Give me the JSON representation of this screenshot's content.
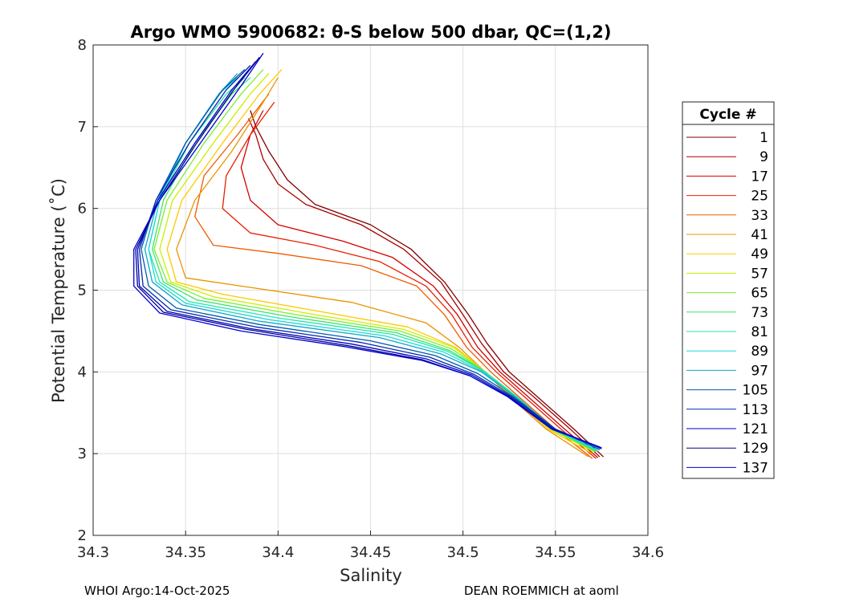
{
  "chart_data": {
    "type": "line",
    "title": "Argo WMO 5900682: θ-S below 500 dbar,  QC=(1,2)",
    "xlabel": "Salinity",
    "ylabel": "Potential Temperature (˚C)",
    "xlim": [
      34.3,
      34.6
    ],
    "ylim": [
      2,
      8
    ],
    "xticks": [
      34.3,
      34.35,
      34.4,
      34.45,
      34.5,
      34.55,
      34.6
    ],
    "xtick_labels": [
      "34.3",
      "34.35",
      "34.4",
      "34.45",
      "34.5",
      "34.55",
      "34.6"
    ],
    "yticks": [
      2,
      3,
      4,
      5,
      6,
      7,
      8
    ],
    "ytick_labels": [
      "2",
      "3",
      "4",
      "5",
      "6",
      "7",
      "8"
    ],
    "grid": true,
    "legend": {
      "title": "Cycle #",
      "placement": "right",
      "entries": [
        {
          "label": "1",
          "color": "#800000"
        },
        {
          "label": "9",
          "color": "#a80000"
        },
        {
          "label": "17",
          "color": "#d40000"
        },
        {
          "label": "25",
          "color": "#e82000"
        },
        {
          "label": "33",
          "color": "#f05a00"
        },
        {
          "label": "41",
          "color": "#e89400"
        },
        {
          "label": "49",
          "color": "#ffc800"
        },
        {
          "label": "57",
          "color": "#c8f000"
        },
        {
          "label": "65",
          "color": "#78f030"
        },
        {
          "label": "73",
          "color": "#40e070"
        },
        {
          "label": "81",
          "color": "#20e8a8"
        },
        {
          "label": "89",
          "color": "#20d8d8"
        },
        {
          "label": "97",
          "color": "#10a8c8"
        },
        {
          "label": "105",
          "color": "#005ab0"
        },
        {
          "label": "113",
          "color": "#0028b0"
        },
        {
          "label": "121",
          "color": "#0000c0"
        },
        {
          "label": "129",
          "color": "#00008a"
        },
        {
          "label": "137",
          "color": "#0000d8"
        }
      ]
    },
    "series": [
      {
        "name": "1",
        "color": "#800000",
        "points": [
          [
            34.576,
            2.96
          ],
          [
            34.56,
            3.3
          ],
          [
            34.54,
            3.7
          ],
          [
            34.525,
            4.0
          ],
          [
            34.513,
            4.35
          ],
          [
            34.503,
            4.7
          ],
          [
            34.49,
            5.1
          ],
          [
            34.472,
            5.5
          ],
          [
            34.45,
            5.8
          ],
          [
            34.42,
            6.05
          ],
          [
            34.405,
            6.35
          ],
          [
            34.395,
            6.7
          ],
          [
            34.388,
            7.0
          ],
          [
            34.385,
            7.2
          ]
        ]
      },
      {
        "name": "9",
        "color": "#a80000",
        "points": [
          [
            34.574,
            2.96
          ],
          [
            34.558,
            3.3
          ],
          [
            34.538,
            3.7
          ],
          [
            34.522,
            4.0
          ],
          [
            34.51,
            4.35
          ],
          [
            34.5,
            4.7
          ],
          [
            34.488,
            5.1
          ],
          [
            34.468,
            5.5
          ],
          [
            34.445,
            5.8
          ],
          [
            34.415,
            6.05
          ],
          [
            34.4,
            6.3
          ],
          [
            34.392,
            6.6
          ],
          [
            34.388,
            6.9
          ],
          [
            34.384,
            7.1
          ]
        ]
      },
      {
        "name": "17",
        "color": "#d40000",
        "points": [
          [
            34.573,
            2.95
          ],
          [
            34.555,
            3.3
          ],
          [
            34.535,
            3.7
          ],
          [
            34.52,
            4.0
          ],
          [
            34.508,
            4.3
          ],
          [
            34.497,
            4.7
          ],
          [
            34.484,
            5.05
          ],
          [
            34.462,
            5.4
          ],
          [
            34.435,
            5.6
          ],
          [
            34.4,
            5.8
          ],
          [
            34.385,
            6.1
          ],
          [
            34.38,
            6.5
          ],
          [
            34.385,
            6.9
          ],
          [
            34.392,
            7.2
          ]
        ]
      },
      {
        "name": "25",
        "color": "#e82000",
        "points": [
          [
            34.572,
            2.94
          ],
          [
            34.553,
            3.3
          ],
          [
            34.533,
            3.7
          ],
          [
            34.518,
            4.0
          ],
          [
            34.505,
            4.3
          ],
          [
            34.494,
            4.7
          ],
          [
            34.48,
            5.05
          ],
          [
            34.455,
            5.35
          ],
          [
            34.42,
            5.55
          ],
          [
            34.385,
            5.7
          ],
          [
            34.37,
            6.0
          ],
          [
            34.372,
            6.4
          ],
          [
            34.385,
            6.9
          ],
          [
            34.398,
            7.3
          ]
        ]
      },
      {
        "name": "33",
        "color": "#f05a00",
        "points": [
          [
            34.57,
            2.94
          ],
          [
            34.55,
            3.3
          ],
          [
            34.53,
            3.7
          ],
          [
            34.515,
            4.0
          ],
          [
            34.502,
            4.3
          ],
          [
            34.49,
            4.7
          ],
          [
            34.475,
            5.05
          ],
          [
            34.445,
            5.3
          ],
          [
            34.4,
            5.45
          ],
          [
            34.365,
            5.55
          ],
          [
            34.355,
            5.9
          ],
          [
            34.36,
            6.4
          ],
          [
            34.378,
            6.9
          ],
          [
            34.395,
            7.4
          ]
        ]
      },
      {
        "name": "41",
        "color": "#e89400",
        "points": [
          [
            34.568,
            2.96
          ],
          [
            34.545,
            3.3
          ],
          [
            34.525,
            3.7
          ],
          [
            34.512,
            4.0
          ],
          [
            34.498,
            4.3
          ],
          [
            34.48,
            4.6
          ],
          [
            34.44,
            4.85
          ],
          [
            34.38,
            5.05
          ],
          [
            34.35,
            5.15
          ],
          [
            34.345,
            5.5
          ],
          [
            34.355,
            6.1
          ],
          [
            34.375,
            6.7
          ],
          [
            34.392,
            7.3
          ],
          [
            34.4,
            7.6
          ]
        ]
      },
      {
        "name": "49",
        "color": "#ffc800",
        "points": [
          [
            34.57,
            3.0
          ],
          [
            34.546,
            3.3
          ],
          [
            34.526,
            3.7
          ],
          [
            34.512,
            4.0
          ],
          [
            34.496,
            4.3
          ],
          [
            34.47,
            4.55
          ],
          [
            34.42,
            4.75
          ],
          [
            34.37,
            4.95
          ],
          [
            34.345,
            5.1
          ],
          [
            34.34,
            5.5
          ],
          [
            34.348,
            6.1
          ],
          [
            34.37,
            6.8
          ],
          [
            34.39,
            7.4
          ],
          [
            34.402,
            7.7
          ]
        ]
      },
      {
        "name": "57",
        "color": "#c8f000",
        "points": [
          [
            34.571,
            3.02
          ],
          [
            34.547,
            3.3
          ],
          [
            34.527,
            3.7
          ],
          [
            34.512,
            4.0
          ],
          [
            34.495,
            4.3
          ],
          [
            34.468,
            4.52
          ],
          [
            34.415,
            4.72
          ],
          [
            34.365,
            4.92
          ],
          [
            34.342,
            5.1
          ],
          [
            34.336,
            5.5
          ],
          [
            34.343,
            6.1
          ],
          [
            34.365,
            6.8
          ],
          [
            34.385,
            7.4
          ],
          [
            34.395,
            7.65
          ]
        ]
      },
      {
        "name": "65",
        "color": "#78f030",
        "points": [
          [
            34.572,
            3.02
          ],
          [
            34.548,
            3.3
          ],
          [
            34.528,
            3.7
          ],
          [
            34.512,
            4.0
          ],
          [
            34.494,
            4.28
          ],
          [
            34.466,
            4.5
          ],
          [
            34.41,
            4.7
          ],
          [
            34.36,
            4.9
          ],
          [
            34.34,
            5.1
          ],
          [
            34.333,
            5.5
          ],
          [
            34.34,
            6.1
          ],
          [
            34.36,
            6.8
          ],
          [
            34.38,
            7.4
          ],
          [
            34.392,
            7.7
          ]
        ]
      },
      {
        "name": "73",
        "color": "#40e070",
        "points": [
          [
            34.572,
            3.03
          ],
          [
            34.548,
            3.3
          ],
          [
            34.528,
            3.7
          ],
          [
            34.512,
            4.0
          ],
          [
            34.493,
            4.26
          ],
          [
            34.464,
            4.48
          ],
          [
            34.405,
            4.68
          ],
          [
            34.356,
            4.88
          ],
          [
            34.338,
            5.1
          ],
          [
            34.332,
            5.5
          ],
          [
            34.338,
            6.1
          ],
          [
            34.355,
            6.8
          ],
          [
            34.375,
            7.4
          ],
          [
            34.385,
            7.6
          ]
        ]
      },
      {
        "name": "81",
        "color": "#20e8a8",
        "points": [
          [
            34.573,
            3.03
          ],
          [
            34.549,
            3.3
          ],
          [
            34.529,
            3.7
          ],
          [
            34.512,
            4.0
          ],
          [
            34.492,
            4.25
          ],
          [
            34.462,
            4.46
          ],
          [
            34.4,
            4.66
          ],
          [
            34.352,
            4.86
          ],
          [
            34.336,
            5.1
          ],
          [
            34.33,
            5.5
          ],
          [
            34.336,
            6.1
          ],
          [
            34.352,
            6.8
          ],
          [
            34.372,
            7.4
          ],
          [
            34.382,
            7.6
          ]
        ]
      },
      {
        "name": "89",
        "color": "#20d8d8",
        "points": [
          [
            34.573,
            3.04
          ],
          [
            34.549,
            3.3
          ],
          [
            34.528,
            3.7
          ],
          [
            34.511,
            4.0
          ],
          [
            34.49,
            4.24
          ],
          [
            34.458,
            4.44
          ],
          [
            34.395,
            4.64
          ],
          [
            34.35,
            4.84
          ],
          [
            34.334,
            5.1
          ],
          [
            34.33,
            5.5
          ],
          [
            34.336,
            6.1
          ],
          [
            34.35,
            6.8
          ],
          [
            34.368,
            7.4
          ],
          [
            34.378,
            7.6
          ]
        ]
      },
      {
        "name": "97",
        "color": "#10a8c8",
        "points": [
          [
            34.574,
            3.05
          ],
          [
            34.55,
            3.3
          ],
          [
            34.528,
            3.7
          ],
          [
            34.51,
            4.0
          ],
          [
            34.488,
            4.22
          ],
          [
            34.455,
            4.42
          ],
          [
            34.39,
            4.62
          ],
          [
            34.348,
            4.82
          ],
          [
            34.332,
            5.1
          ],
          [
            34.328,
            5.5
          ],
          [
            34.335,
            6.1
          ],
          [
            34.35,
            6.8
          ],
          [
            34.368,
            7.4
          ],
          [
            34.378,
            7.65
          ]
        ]
      },
      {
        "name": "105",
        "color": "#005ab0",
        "points": [
          [
            34.574,
            3.05
          ],
          [
            34.55,
            3.3
          ],
          [
            34.527,
            3.7
          ],
          [
            34.508,
            3.98
          ],
          [
            34.485,
            4.2
          ],
          [
            34.45,
            4.38
          ],
          [
            34.39,
            4.58
          ],
          [
            34.345,
            4.78
          ],
          [
            34.33,
            5.05
          ],
          [
            34.326,
            5.5
          ],
          [
            34.334,
            6.1
          ],
          [
            34.35,
            6.8
          ],
          [
            34.37,
            7.45
          ],
          [
            34.382,
            7.7
          ]
        ]
      },
      {
        "name": "113",
        "color": "#0028b0",
        "points": [
          [
            34.575,
            3.06
          ],
          [
            34.55,
            3.3
          ],
          [
            34.526,
            3.7
          ],
          [
            34.506,
            3.97
          ],
          [
            34.482,
            4.18
          ],
          [
            34.445,
            4.36
          ],
          [
            34.388,
            4.55
          ],
          [
            34.342,
            4.76
          ],
          [
            34.327,
            5.05
          ],
          [
            34.325,
            5.5
          ],
          [
            34.334,
            6.1
          ],
          [
            34.352,
            6.8
          ],
          [
            34.372,
            7.45
          ],
          [
            34.385,
            7.75
          ]
        ]
      },
      {
        "name": "121",
        "color": "#0000c0",
        "points": [
          [
            34.575,
            3.07
          ],
          [
            34.549,
            3.3
          ],
          [
            34.525,
            3.7
          ],
          [
            34.505,
            3.96
          ],
          [
            34.48,
            4.16
          ],
          [
            34.44,
            4.34
          ],
          [
            34.385,
            4.53
          ],
          [
            34.34,
            4.74
          ],
          [
            34.325,
            5.05
          ],
          [
            34.324,
            5.5
          ],
          [
            34.335,
            6.1
          ],
          [
            34.355,
            6.8
          ],
          [
            34.375,
            7.45
          ],
          [
            34.388,
            7.8
          ]
        ]
      },
      {
        "name": "129",
        "color": "#00008a",
        "points": [
          [
            34.574,
            3.08
          ],
          [
            34.548,
            3.3
          ],
          [
            34.524,
            3.7
          ],
          [
            34.504,
            3.95
          ],
          [
            34.478,
            4.15
          ],
          [
            34.438,
            4.32
          ],
          [
            34.383,
            4.52
          ],
          [
            34.338,
            4.73
          ],
          [
            34.324,
            5.05
          ],
          [
            34.323,
            5.5
          ],
          [
            34.336,
            6.1
          ],
          [
            34.356,
            6.8
          ],
          [
            34.376,
            7.45
          ],
          [
            34.39,
            7.85
          ]
        ]
      },
      {
        "name": "137",
        "color": "#0000d8",
        "points": [
          [
            34.574,
            3.08
          ],
          [
            34.548,
            3.3
          ],
          [
            34.524,
            3.7
          ],
          [
            34.504,
            3.95
          ],
          [
            34.478,
            4.14
          ],
          [
            34.436,
            4.31
          ],
          [
            34.38,
            4.5
          ],
          [
            34.336,
            4.72
          ],
          [
            34.322,
            5.05
          ],
          [
            34.322,
            5.5
          ],
          [
            34.336,
            6.1
          ],
          [
            34.358,
            6.8
          ],
          [
            34.38,
            7.5
          ],
          [
            34.392,
            7.9
          ]
        ]
      }
    ],
    "footer_left": "WHOI Argo:14-Oct-2025",
    "footer_right": "DEAN ROEMMICH at aoml"
  }
}
